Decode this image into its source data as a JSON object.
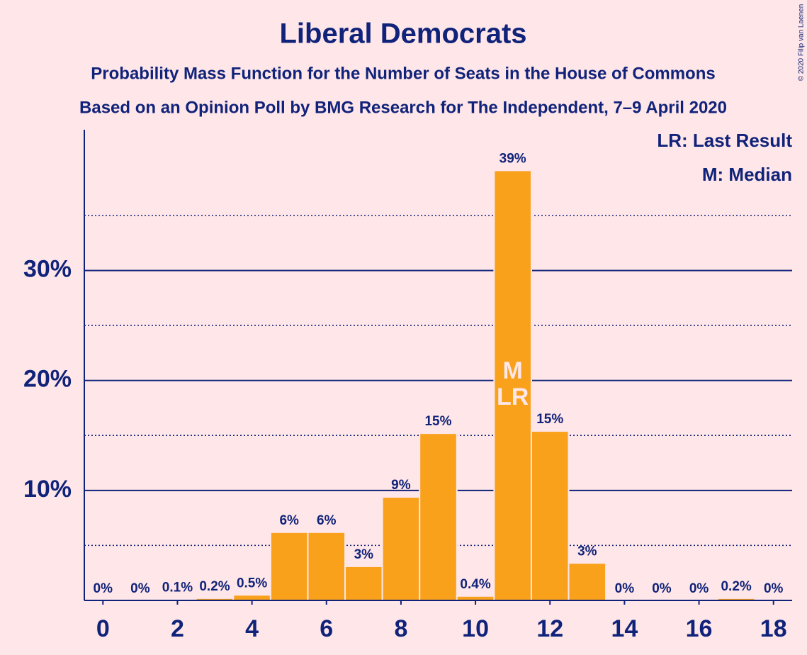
{
  "chart_data": {
    "type": "bar",
    "title": "Liberal Democrats",
    "subtitle": "Probability Mass Function for the Number of Seats in the House of Commons",
    "subtitle2": "Based on an Opinion Poll by BMG Research for The Independent, 7–9 April 2020",
    "credit": "© 2020 Filip van Laenen",
    "x": [
      0,
      1,
      2,
      3,
      4,
      5,
      6,
      7,
      8,
      9,
      10,
      11,
      12,
      13,
      14,
      15,
      16,
      17,
      18
    ],
    "values": [
      0,
      0,
      0.1,
      0.2,
      0.5,
      6.2,
      6.2,
      3.1,
      9.4,
      15.2,
      0.4,
      39.1,
      15.4,
      3.4,
      0,
      0,
      0,
      0.2,
      0
    ],
    "value_labels": [
      "0%",
      "0%",
      "0.1%",
      "0.2%",
      "0.5%",
      "6%",
      "6%",
      "3%",
      "9%",
      "15%",
      "0.4%",
      "39%",
      "15%",
      "3%",
      "0%",
      "0%",
      "0%",
      "0.2%",
      "0%"
    ],
    "color": "#f9a11b",
    "xlim": [
      -0.5,
      18.5
    ],
    "xticks": [
      0,
      2,
      4,
      6,
      8,
      10,
      12,
      14,
      16,
      18
    ],
    "ylim": [
      0,
      42.8
    ],
    "yticks": [
      {
        "value": 10,
        "label": "10%"
      },
      {
        "value": 20,
        "label": "20%"
      },
      {
        "value": 30,
        "label": "30%"
      }
    ],
    "minor_yticks": [
      5,
      15,
      25,
      35
    ],
    "grid": true,
    "annotations": [
      {
        "x": 11,
        "label": "M"
      },
      {
        "x": 11,
        "label": "LR"
      }
    ],
    "legend": [
      "LR: Last Result",
      "M: Median"
    ],
    "legend_position": "top-right"
  }
}
